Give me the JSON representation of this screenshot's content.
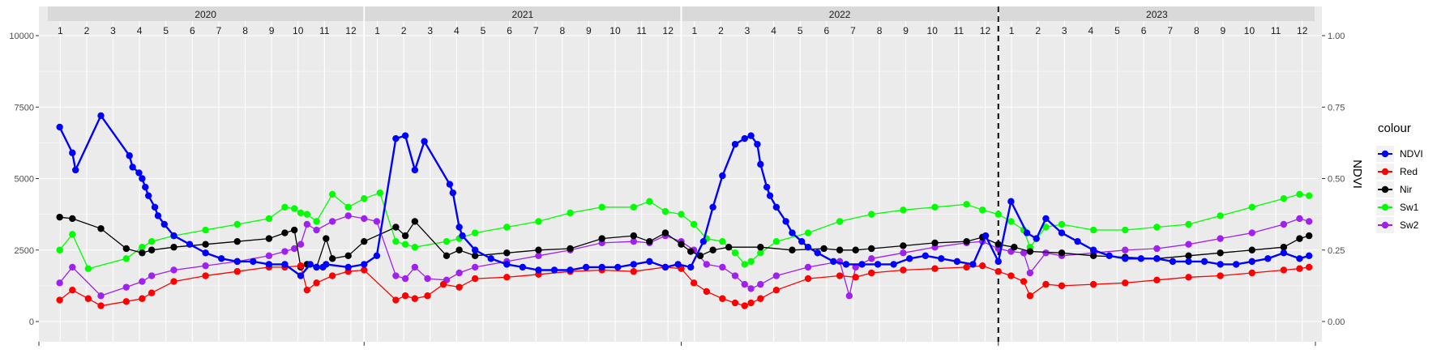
{
  "chart_data": {
    "type": "line",
    "title": "",
    "xlabel": "",
    "ylabel_left": "",
    "ylabel_right": "NDVI",
    "ylim_left": [
      0,
      10000
    ],
    "ylim_right": [
      0,
      1
    ],
    "left_ticks": [
      0,
      2500,
      5000,
      7500,
      10000
    ],
    "right_ticks": [
      0.0,
      0.25,
      0.5,
      0.75,
      1.0
    ],
    "right_tick_labels": [
      "0.00",
      "0.25",
      "0.50",
      "0.75",
      "1.00"
    ],
    "x_range": [
      2020.0,
      2024.0
    ],
    "years": [
      "2020",
      "2021",
      "2022",
      "2023"
    ],
    "months": [
      "1",
      "2",
      "3",
      "4",
      "5",
      "6",
      "7",
      "8",
      "9",
      "10",
      "11",
      "12"
    ],
    "vline_x": 2023.0,
    "grid": true,
    "legend_title": "colour",
    "legend_position": "right",
    "colors": {
      "NDVI": "#0000ff",
      "Red": "#ff0000",
      "Nir": "#000000",
      "Sw1": "#00ff00",
      "Sw2": "#a020f0"
    },
    "series": [
      {
        "name": "NDVI",
        "axis": "right",
        "x": [
          2020.04,
          2020.08,
          2020.09,
          2020.17,
          2020.26,
          2020.27,
          2020.29,
          2020.3,
          2020.31,
          2020.32,
          2020.34,
          2020.35,
          2020.37,
          2020.4,
          2020.45,
          2020.5,
          2020.55,
          2020.6,
          2020.65,
          2020.7,
          2020.75,
          2020.8,
          2020.83,
          2020.85,
          2020.87,
          2020.88,
          2020.95,
          2021.0,
          2021.04,
          2021.1,
          2021.13,
          2021.16,
          2021.19,
          2021.27,
          2021.28,
          2021.3,
          2021.31,
          2021.35,
          2021.4,
          2021.45,
          2021.5,
          2021.55,
          2021.6,
          2021.65,
          2021.7,
          2021.75,
          2021.8,
          2021.85,
          2021.9,
          2021.95,
          2021.99,
          2022.03,
          2022.07,
          2022.1,
          2022.13,
          2022.17,
          2022.2,
          2022.22,
          2022.24,
          2022.25,
          2022.27,
          2022.28,
          2022.3,
          2022.33,
          2022.35,
          2022.38,
          2022.4,
          2022.43,
          2022.48,
          2022.52,
          2022.57,
          2022.62,
          2022.67,
          2022.72,
          2022.77,
          2022.82,
          2022.87,
          2022.92,
          2022.96,
          2023.0,
          2023.04,
          2023.09,
          2023.12,
          2023.15,
          2023.2,
          2023.25,
          2023.3,
          2023.35,
          2023.4,
          2023.45,
          2023.5,
          2023.55,
          2023.6,
          2023.65,
          2023.7,
          2023.75,
          2023.8,
          2023.85,
          2023.9,
          2023.95,
          2023.98
        ],
        "y": [
          0.68,
          0.59,
          0.53,
          0.72,
          0.58,
          0.54,
          0.52,
          0.5,
          0.47,
          0.44,
          0.4,
          0.37,
          0.34,
          0.3,
          0.27,
          0.24,
          0.22,
          0.21,
          0.21,
          0.2,
          0.2,
          0.16,
          0.2,
          0.19,
          0.19,
          0.2,
          0.19,
          0.2,
          0.23,
          0.64,
          0.65,
          0.53,
          0.63,
          0.48,
          0.45,
          0.33,
          0.3,
          0.25,
          0.22,
          0.2,
          0.19,
          0.18,
          0.18,
          0.18,
          0.19,
          0.19,
          0.19,
          0.2,
          0.21,
          0.19,
          0.2,
          0.19,
          0.28,
          0.4,
          0.51,
          0.62,
          0.64,
          0.65,
          0.62,
          0.55,
          0.47,
          0.44,
          0.4,
          0.35,
          0.31,
          0.28,
          0.26,
          0.24,
          0.21,
          0.2,
          0.2,
          0.2,
          0.2,
          0.22,
          0.23,
          0.22,
          0.21,
          0.2,
          0.3,
          0.21,
          0.42,
          0.31,
          0.29,
          0.36,
          0.31,
          0.28,
          0.25,
          0.23,
          0.22,
          0.22,
          0.22,
          0.21,
          0.21,
          0.21,
          0.2,
          0.2,
          0.21,
          0.22,
          0.24,
          0.22,
          0.23
        ]
      },
      {
        "name": "Red",
        "axis": "left",
        "x": [
          2020.04,
          2020.08,
          2020.13,
          2020.17,
          2020.25,
          2020.3,
          2020.33,
          2020.4,
          2020.5,
          2020.6,
          2020.7,
          2020.75,
          2020.8,
          2020.82,
          2020.85,
          2020.9,
          2020.95,
          2021.0,
          2021.1,
          2021.13,
          2021.16,
          2021.2,
          2021.25,
          2021.3,
          2021.35,
          2021.45,
          2021.55,
          2021.65,
          2021.75,
          2021.85,
          2021.95,
          2022.0,
          2022.04,
          2022.08,
          2022.13,
          2022.17,
          2022.2,
          2022.22,
          2022.25,
          2022.3,
          2022.4,
          2022.5,
          2022.55,
          2022.6,
          2022.7,
          2022.8,
          2022.9,
          2022.95,
          2023.0,
          2023.04,
          2023.08,
          2023.1,
          2023.15,
          2023.2,
          2023.3,
          2023.4,
          2023.5,
          2023.6,
          2023.7,
          2023.8,
          2023.9,
          2023.95,
          2023.98
        ],
        "y": [
          750,
          1100,
          800,
          550,
          700,
          800,
          1000,
          1400,
          1600,
          1750,
          1900,
          1900,
          1950,
          1100,
          1350,
          1600,
          1750,
          1800,
          750,
          900,
          800,
          900,
          1300,
          1200,
          1500,
          1550,
          1650,
          1750,
          1800,
          1750,
          1900,
          1850,
          1350,
          1050,
          800,
          650,
          550,
          650,
          800,
          1100,
          1500,
          1600,
          1550,
          1700,
          1800,
          1850,
          1900,
          1950,
          1750,
          1600,
          1400,
          900,
          1300,
          1250,
          1300,
          1350,
          1450,
          1550,
          1600,
          1700,
          1800,
          1850,
          1900
        ]
      },
      {
        "name": "Nir",
        "axis": "left",
        "x": [
          2020.04,
          2020.08,
          2020.17,
          2020.25,
          2020.3,
          2020.33,
          2020.4,
          2020.5,
          2020.6,
          2020.7,
          2020.75,
          2020.78,
          2020.8,
          2020.82,
          2020.85,
          2020.88,
          2020.9,
          2020.95,
          2021.0,
          2021.1,
          2021.13,
          2021.16,
          2021.26,
          2021.3,
          2021.35,
          2021.45,
          2021.55,
          2021.65,
          2021.75,
          2021.85,
          2021.9,
          2021.95,
          2022.0,
          2022.03,
          2022.06,
          2022.1,
          2022.15,
          2022.25,
          2022.35,
          2022.45,
          2022.5,
          2022.55,
          2022.6,
          2022.7,
          2022.8,
          2022.9,
          2022.95,
          2023.0,
          2023.05,
          2023.1,
          2023.2,
          2023.3,
          2023.4,
          2023.5,
          2023.6,
          2023.7,
          2023.8,
          2023.9,
          2023.95,
          2023.98
        ],
        "y": [
          3650,
          3600,
          3250,
          2550,
          2400,
          2500,
          2600,
          2700,
          2800,
          2900,
          3100,
          3200,
          1900,
          2000,
          1900,
          2900,
          2200,
          2300,
          2800,
          3300,
          3000,
          3500,
          2300,
          2500,
          2300,
          2400,
          2500,
          2550,
          2900,
          3000,
          2800,
          3100,
          2700,
          2450,
          2300,
          2500,
          2600,
          2600,
          2500,
          2550,
          2500,
          2500,
          2550,
          2650,
          2750,
          2800,
          2950,
          2700,
          2600,
          2450,
          2400,
          2300,
          2250,
          2200,
          2300,
          2400,
          2500,
          2600,
          2900,
          3000
        ]
      },
      {
        "name": "Sw1",
        "axis": "left",
        "x": [
          2020.04,
          2020.08,
          2020.13,
          2020.25,
          2020.3,
          2020.33,
          2020.4,
          2020.5,
          2020.6,
          2020.7,
          2020.75,
          2020.78,
          2020.8,
          2020.82,
          2020.85,
          2020.9,
          2020.95,
          2021.0,
          2021.05,
          2021.1,
          2021.13,
          2021.16,
          2021.26,
          2021.3,
          2021.35,
          2021.45,
          2021.55,
          2021.65,
          2021.75,
          2021.85,
          2021.9,
          2021.95,
          2022.0,
          2022.04,
          2022.08,
          2022.13,
          2022.17,
          2022.2,
          2022.22,
          2022.25,
          2022.3,
          2022.4,
          2022.5,
          2022.6,
          2022.7,
          2022.8,
          2022.9,
          2022.95,
          2023.0,
          2023.04,
          2023.08,
          2023.1,
          2023.15,
          2023.2,
          2023.3,
          2023.4,
          2023.5,
          2023.6,
          2023.7,
          2023.8,
          2023.9,
          2023.95,
          2023.98
        ],
        "y": [
          2500,
          3050,
          1850,
          2200,
          2600,
          2800,
          3000,
          3200,
          3400,
          3600,
          4000,
          3950,
          3800,
          3750,
          3500,
          4450,
          4000,
          4300,
          4500,
          2800,
          2700,
          2600,
          2800,
          2900,
          3100,
          3300,
          3500,
          3800,
          4000,
          4000,
          4200,
          3850,
          3750,
          3400,
          2900,
          2800,
          2400,
          2000,
          2100,
          2400,
          2800,
          3100,
          3500,
          3750,
          3900,
          4000,
          4100,
          3900,
          3750,
          3500,
          3200,
          2600,
          3300,
          3400,
          3200,
          3200,
          3300,
          3400,
          3700,
          4000,
          4300,
          4450,
          4400
        ]
      },
      {
        "name": "Sw2",
        "axis": "left",
        "x": [
          2020.04,
          2020.08,
          2020.17,
          2020.25,
          2020.3,
          2020.33,
          2020.4,
          2020.5,
          2020.6,
          2020.7,
          2020.75,
          2020.78,
          2020.8,
          2020.82,
          2020.85,
          2020.9,
          2020.95,
          2021.0,
          2021.04,
          2021.1,
          2021.13,
          2021.16,
          2021.2,
          2021.26,
          2021.3,
          2021.35,
          2021.45,
          2021.55,
          2021.65,
          2021.75,
          2021.85,
          2021.9,
          2021.95,
          2022.0,
          2022.04,
          2022.08,
          2022.13,
          2022.17,
          2022.2,
          2022.22,
          2022.25,
          2022.3,
          2022.4,
          2022.5,
          2022.53,
          2022.55,
          2022.6,
          2022.7,
          2022.8,
          2022.9,
          2022.95,
          2023.0,
          2023.04,
          2023.08,
          2023.1,
          2023.15,
          2023.2,
          2023.3,
          2023.4,
          2023.5,
          2023.6,
          2023.7,
          2023.8,
          2023.9,
          2023.95,
          2023.98
        ],
        "y": [
          1350,
          1900,
          900,
          1200,
          1400,
          1600,
          1800,
          1950,
          2100,
          2300,
          2450,
          2550,
          2700,
          3400,
          3200,
          3500,
          3700,
          3600,
          3500,
          1600,
          1500,
          1900,
          1500,
          1450,
          1700,
          1900,
          2100,
          2300,
          2500,
          2750,
          2800,
          2750,
          3000,
          2800,
          2500,
          2000,
          1900,
          1600,
          1300,
          1150,
          1300,
          1600,
          1900,
          2100,
          900,
          1900,
          2200,
          2400,
          2600,
          2750,
          2800,
          2550,
          2450,
          2400,
          1700,
          2400,
          2300,
          2400,
          2500,
          2550,
          2700,
          2900,
          3100,
          3400,
          3600,
          3500
        ]
      }
    ]
  }
}
